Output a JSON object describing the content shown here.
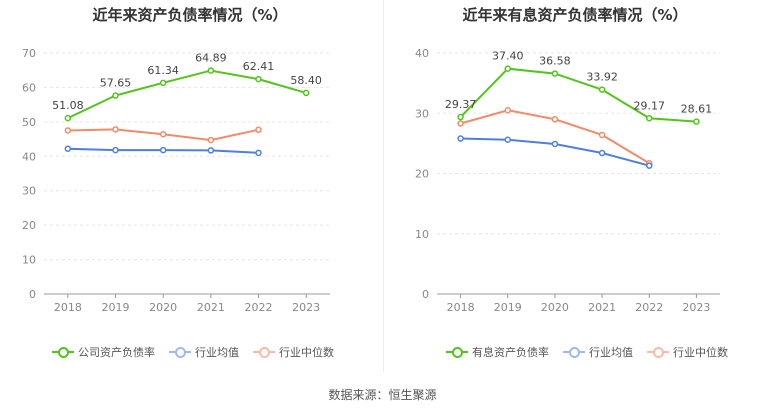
{
  "chart_data": [
    {
      "type": "line",
      "title": "近年来资产负债率情况（%）",
      "categories": [
        "2018",
        "2019",
        "2020",
        "2021",
        "2022",
        "2023"
      ],
      "ylim": [
        0,
        70
      ],
      "yticks": [
        "0",
        "10",
        "20",
        "30",
        "40",
        "50",
        "60",
        "70"
      ],
      "series": [
        {
          "name": "公司资产负债率",
          "color": "#52c41a",
          "labeled": true,
          "values": [
            51.08,
            57.65,
            61.34,
            64.89,
            62.41,
            58.4
          ],
          "labels": [
            "51.08",
            "57.65",
            "61.34",
            "64.89",
            "62.41",
            "58.40"
          ]
        },
        {
          "name": "行业均值",
          "color": "#4e7fe0",
          "labeled": false,
          "values": [
            42.2,
            41.8,
            41.8,
            41.7,
            41.0,
            null
          ]
        },
        {
          "name": "行业中位数",
          "color": "#f38a68",
          "labeled": false,
          "values": [
            47.5,
            47.8,
            46.4,
            44.7,
            47.7,
            null
          ]
        }
      ]
    },
    {
      "type": "line",
      "title": "近年来有息资产负债率情况（%）",
      "categories": [
        "2018",
        "2019",
        "2020",
        "2021",
        "2022",
        "2023"
      ],
      "ylim": [
        0,
        40
      ],
      "yticks": [
        "0",
        "10",
        "20",
        "30",
        "40"
      ],
      "series": [
        {
          "name": "有息资产负债率",
          "color": "#52c41a",
          "labeled": true,
          "values": [
            29.37,
            37.4,
            36.58,
            33.92,
            29.17,
            28.61
          ],
          "labels": [
            "29.37",
            "37.40",
            "36.58",
            "33.92",
            "29.17",
            "28.61"
          ]
        },
        {
          "name": "行业均值",
          "color": "#4e7fe0",
          "labeled": false,
          "values": [
            25.8,
            25.6,
            24.9,
            23.4,
            21.3,
            null
          ]
        },
        {
          "name": "行业中位数",
          "color": "#f38a68",
          "labeled": false,
          "values": [
            28.3,
            30.5,
            29.0,
            26.4,
            21.7,
            null
          ]
        }
      ]
    }
  ],
  "source_text": "数据来源：恒生聚源"
}
